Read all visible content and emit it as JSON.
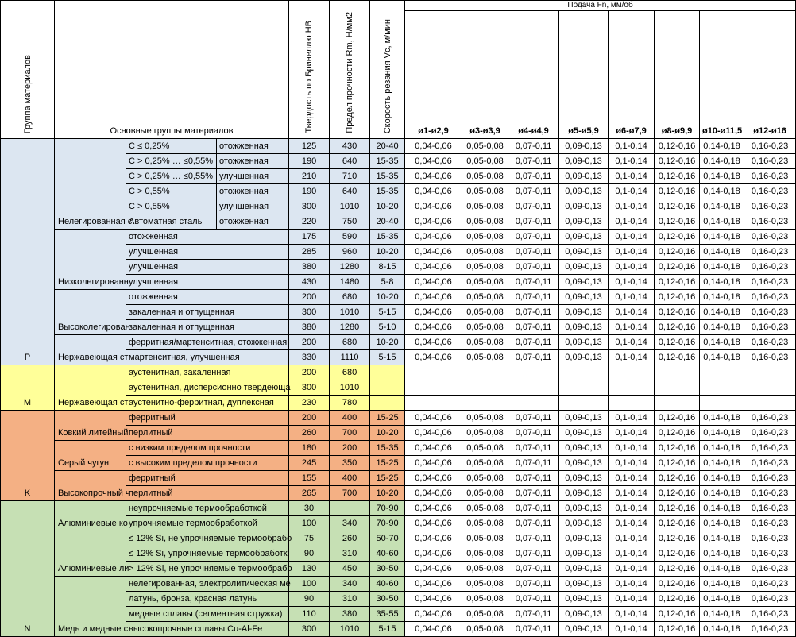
{
  "header": {
    "group": "Группа материалов",
    "main_groups": "Основные группы материалов",
    "hardness": "Твердость по Бринеллю HB",
    "strength": "Предел прочности Rm, Н/мм2",
    "speed": "Скорость резания Vc, м/мин",
    "feed": "Подача Fn, мм/об",
    "diameters": [
      "ø1-ø2,9",
      "ø3-ø3,9",
      "ø4-ø4,9",
      "ø5-ø5,9",
      "ø6-ø7,9",
      "ø8-ø9,9",
      "ø10-ø11,5",
      "ø12-ø16"
    ]
  },
  "groups": [
    {
      "letter": "P",
      "color": "#dce6f1",
      "subgroups": [
        {
          "name": "Нелегированная с",
          "rows": [
            {
              "c1": "C ≤ 0,25%",
              "c2": "отожженная",
              "hb": "125",
              "rm": "430",
              "vc": "20-40",
              "feeds": [
                "0,04-0,06",
                "0,05-0,08",
                "0,07-0,11",
                "0,09-0,13",
                "0,1-0,14",
                "0,12-0,16",
                "0,14-0,18",
                "0,16-0,23"
              ]
            },
            {
              "c1": "C > 0,25% … ≤0,55%",
              "c2": "отожженная",
              "hb": "190",
              "rm": "640",
              "vc": "15-35",
              "feeds": [
                "0,04-0,06",
                "0,05-0,08",
                "0,07-0,11",
                "0,09-0,13",
                "0,1-0,14",
                "0,12-0,16",
                "0,14-0,18",
                "0,16-0,23"
              ]
            },
            {
              "c1": "C > 0,25% … ≤0,55%",
              "c2": "улучшенная",
              "hb": "210",
              "rm": "710",
              "vc": "15-35",
              "feeds": [
                "0,04-0,06",
                "0,05-0,08",
                "0,07-0,11",
                "0,09-0,13",
                "0,1-0,14",
                "0,12-0,16",
                "0,14-0,18",
                "0,16-0,23"
              ]
            },
            {
              "c1": "C > 0,55%",
              "c2": "отожженная",
              "hb": "190",
              "rm": "640",
              "vc": "15-35",
              "feeds": [
                "0,04-0,06",
                "0,05-0,08",
                "0,07-0,11",
                "0,09-0,13",
                "0,1-0,14",
                "0,12-0,16",
                "0,14-0,18",
                "0,16-0,23"
              ]
            },
            {
              "c1": "C > 0,55%",
              "c2": "улучшенная",
              "hb": "300",
              "rm": "1010",
              "vc": "10-20",
              "feeds": [
                "0,04-0,06",
                "0,05-0,08",
                "0,07-0,11",
                "0,09-0,13",
                "0,1-0,14",
                "0,12-0,16",
                "0,14-0,18",
                "0,16-0,23"
              ]
            },
            {
              "c1": "Автоматная сталь",
              "c2": "отожженная",
              "hb": "220",
              "rm": "750",
              "vc": "20-40",
              "feeds": [
                "0,04-0,06",
                "0,05-0,08",
                "0,07-0,11",
                "0,09-0,13",
                "0,1-0,14",
                "0,12-0,16",
                "0,14-0,18",
                "0,16-0,23"
              ]
            }
          ]
        },
        {
          "name": "Низколегированн",
          "rows": [
            {
              "c1": "отожженная",
              "hb": "175",
              "rm": "590",
              "vc": "15-35",
              "feeds": [
                "0,04-0,06",
                "0,05-0,08",
                "0,07-0,11",
                "0,09-0,13",
                "0,1-0,14",
                "0,12-0,16",
                "0,14-0,18",
                "0,16-0,23"
              ]
            },
            {
              "c1": "улучшенная",
              "hb": "285",
              "rm": "960",
              "vc": "10-20",
              "feeds": [
                "0,04-0,06",
                "0,05-0,08",
                "0,07-0,11",
                "0,09-0,13",
                "0,1-0,14",
                "0,12-0,16",
                "0,14-0,18",
                "0,16-0,23"
              ]
            },
            {
              "c1": "улучшенная",
              "hb": "380",
              "rm": "1280",
              "vc": "8-15",
              "feeds": [
                "0,04-0,06",
                "0,05-0,08",
                "0,07-0,11",
                "0,09-0,13",
                "0,1-0,14",
                "0,12-0,16",
                "0,14-0,18",
                "0,16-0,23"
              ]
            },
            {
              "c1": "улучшенная",
              "hb": "430",
              "rm": "1480",
              "vc": "5-8",
              "feeds": [
                "0,04-0,06",
                "0,05-0,08",
                "0,07-0,11",
                "0,09-0,13",
                "0,1-0,14",
                "0,12-0,16",
                "0,14-0,18",
                "0,16-0,23"
              ]
            }
          ]
        },
        {
          "name": "Высоколегирован",
          "rows": [
            {
              "c1": "отожженная",
              "hb": "200",
              "rm": "680",
              "vc": "10-20",
              "feeds": [
                "0,04-0,06",
                "0,05-0,08",
                "0,07-0,11",
                "0,09-0,13",
                "0,1-0,14",
                "0,12-0,16",
                "0,14-0,18",
                "0,16-0,23"
              ]
            },
            {
              "c1": "закаленная и отпущенная",
              "hb": "300",
              "rm": "1010",
              "vc": "5-15",
              "feeds": [
                "0,04-0,06",
                "0,05-0,08",
                "0,07-0,11",
                "0,09-0,13",
                "0,1-0,14",
                "0,12-0,16",
                "0,14-0,18",
                "0,16-0,23"
              ]
            },
            {
              "c1": "закаленная и отпущенная",
              "hb": "380",
              "rm": "1280",
              "vc": "5-10",
              "feeds": [
                "0,04-0,06",
                "0,05-0,08",
                "0,07-0,11",
                "0,09-0,13",
                "0,1-0,14",
                "0,12-0,16",
                "0,14-0,18",
                "0,16-0,23"
              ]
            }
          ]
        },
        {
          "name": "Нержавеющая ст",
          "rows": [
            {
              "c1": "ферритная/мартенситная, отожженная",
              "hb": "200",
              "rm": "680",
              "vc": "10-20",
              "feeds": [
                "0,04-0,06",
                "0,05-0,08",
                "0,07-0,11",
                "0,09-0,13",
                "0,1-0,14",
                "0,12-0,16",
                "0,14-0,18",
                "0,16-0,23"
              ]
            },
            {
              "c1": "мартенситная, улучшенная",
              "hb": "330",
              "rm": "1110",
              "vc": "5-15",
              "feeds": [
                "0,04-0,06",
                "0,05-0,08",
                "0,07-0,11",
                "0,09-0,13",
                "0,1-0,14",
                "0,12-0,16",
                "0,14-0,18",
                "0,16-0,23"
              ]
            }
          ]
        }
      ]
    },
    {
      "letter": "M",
      "color": "#ffff99",
      "subgroups": [
        {
          "name": "Нержавеющая ст",
          "rows": [
            {
              "c1": "аустенитная, закаленная",
              "hb": "200",
              "rm": "680",
              "vc": "",
              "feeds": [
                "",
                "",
                "",
                "",
                "",
                "",
                "",
                ""
              ]
            },
            {
              "c1": "аустенитная, дисперсионно твердеюща",
              "hb": "300",
              "rm": "1010",
              "vc": "",
              "feeds": [
                "",
                "",
                "",
                "",
                "",
                "",
                "",
                ""
              ]
            },
            {
              "c1": "аустенитно-ферритная, дуплексная",
              "hb": "230",
              "rm": "780",
              "vc": "",
              "feeds": [
                "",
                "",
                "",
                "",
                "",
                "",
                "",
                ""
              ]
            }
          ]
        }
      ]
    },
    {
      "letter": "K",
      "color": "#f4b084",
      "subgroups": [
        {
          "name": "Ковкий литейный",
          "rows": [
            {
              "c1": "ферритный",
              "hb": "200",
              "rm": "400",
              "vc": "15-25",
              "feeds": [
                "0,04-0,06",
                "0,05-0,08",
                "0,07-0,11",
                "0,09-0,13",
                "0,1-0,14",
                "0,12-0,16",
                "0,14-0,18",
                "0,16-0,23"
              ]
            },
            {
              "c1": "перлитный",
              "hb": "260",
              "rm": "700",
              "vc": "10-20",
              "feeds": [
                "0,04-0,06",
                "0,05-0,08",
                "0,07-0,11",
                "0,09-0,13",
                "0,1-0,14",
                "0,12-0,16",
                "0,14-0,18",
                "0,16-0,23"
              ]
            }
          ]
        },
        {
          "name": "Серый чугун",
          "rows": [
            {
              "c1": "с низким пределом прочности",
              "hb": "180",
              "rm": "200",
              "vc": "15-35",
              "feeds": [
                "0,04-0,06",
                "0,05-0,08",
                "0,07-0,11",
                "0,09-0,13",
                "0,1-0,14",
                "0,12-0,16",
                "0,14-0,18",
                "0,16-0,23"
              ]
            },
            {
              "c1": "с высоким пределом прочности",
              "hb": "245",
              "rm": "350",
              "vc": "15-25",
              "feeds": [
                "0,04-0,06",
                "0,05-0,08",
                "0,07-0,11",
                "0,09-0,13",
                "0,1-0,14",
                "0,12-0,16",
                "0,14-0,18",
                "0,16-0,23"
              ]
            }
          ]
        },
        {
          "name": "Высокопрочный ч",
          "rows": [
            {
              "c1": "ферритный",
              "hb": "155",
              "rm": "400",
              "vc": "15-25",
              "feeds": [
                "0,04-0,06",
                "0,05-0,08",
                "0,07-0,11",
                "0,09-0,13",
                "0,1-0,14",
                "0,12-0,16",
                "0,14-0,18",
                "0,16-0,23"
              ]
            },
            {
              "c1": "перлитный",
              "hb": "265",
              "rm": "700",
              "vc": "10-20",
              "feeds": [
                "0,04-0,06",
                "0,05-0,08",
                "0,07-0,11",
                "0,09-0,13",
                "0,1-0,14",
                "0,12-0,16",
                "0,14-0,18",
                "0,16-0,23"
              ]
            }
          ]
        }
      ]
    },
    {
      "letter": "N",
      "color": "#c6e0b4",
      "subgroups": [
        {
          "name": "Алюминиевые ко",
          "rows": [
            {
              "c1": "неупрочняемые термообработкой",
              "hb": "30",
              "rm": "",
              "vc": "70-90",
              "feeds": [
                "0,04-0,06",
                "0,05-0,08",
                "0,07-0,11",
                "0,09-0,13",
                "0,1-0,14",
                "0,12-0,16",
                "0,14-0,18",
                "0,16-0,23"
              ]
            },
            {
              "c1": "упрочняемые термообработкой",
              "hb": "100",
              "rm": "340",
              "vc": "70-90",
              "feeds": [
                "0,04-0,06",
                "0,05-0,08",
                "0,07-0,11",
                "0,09-0,13",
                "0,1-0,14",
                "0,12-0,16",
                "0,14-0,18",
                "0,16-0,23"
              ]
            }
          ]
        },
        {
          "name": "Алюминиевые ли",
          "rows": [
            {
              "c1": "≤ 12% Si, не упрочняемые термообрабо",
              "hb": "75",
              "rm": "260",
              "vc": "50-70",
              "feeds": [
                "0,04-0,06",
                "0,05-0,08",
                "0,07-0,11",
                "0,09-0,13",
                "0,1-0,14",
                "0,12-0,16",
                "0,14-0,18",
                "0,16-0,23"
              ]
            },
            {
              "c1": "≤ 12% Si, упрочняемые термообработк",
              "hb": "90",
              "rm": "310",
              "vc": "40-60",
              "feeds": [
                "0,04-0,06",
                "0,05-0,08",
                "0,07-0,11",
                "0,09-0,13",
                "0,1-0,14",
                "0,12-0,16",
                "0,14-0,18",
                "0,16-0,23"
              ]
            },
            {
              "c1": "> 12% Si, не упрочняемые термообрабо",
              "hb": "130",
              "rm": "450",
              "vc": "30-50",
              "feeds": [
                "0,04-0,06",
                "0,05-0,08",
                "0,07-0,11",
                "0,09-0,13",
                "0,1-0,14",
                "0,12-0,16",
                "0,14-0,18",
                "0,16-0,23"
              ]
            }
          ]
        },
        {
          "name": "Медь и медные с",
          "rows": [
            {
              "c1": "нелегированная, электролитическая ме",
              "hb": "100",
              "rm": "340",
              "vc": "40-60",
              "feeds": [
                "0,04-0,06",
                "0,05-0,08",
                "0,07-0,11",
                "0,09-0,13",
                "0,1-0,14",
                "0,12-0,16",
                "0,14-0,18",
                "0,16-0,23"
              ]
            },
            {
              "c1": "латунь, бронза, красная латунь",
              "hb": "90",
              "rm": "310",
              "vc": "30-50",
              "feeds": [
                "0,04-0,06",
                "0,05-0,08",
                "0,07-0,11",
                "0,09-0,13",
                "0,1-0,14",
                "0,12-0,16",
                "0,14-0,18",
                "0,16-0,23"
              ]
            },
            {
              "c1": "медные сплавы (сегментная стружка)",
              "hb": "110",
              "rm": "380",
              "vc": "35-55",
              "feeds": [
                "0,04-0,06",
                "0,05-0,08",
                "0,07-0,11",
                "0,09-0,13",
                "0,1-0,14",
                "0,12-0,16",
                "0,14-0,18",
                "0,16-0,23"
              ]
            },
            {
              "c1": "высокопрочные сплавы Cu-Al-Fe",
              "hb": "300",
              "rm": "1010",
              "vc": "5-15",
              "feeds": [
                "0,04-0,06",
                "0,05-0,08",
                "0,07-0,11",
                "0,09-0,13",
                "0,1-0,14",
                "0,12-0,16",
                "0,14-0,18",
                "0,16-0,23"
              ]
            }
          ]
        }
      ]
    }
  ]
}
